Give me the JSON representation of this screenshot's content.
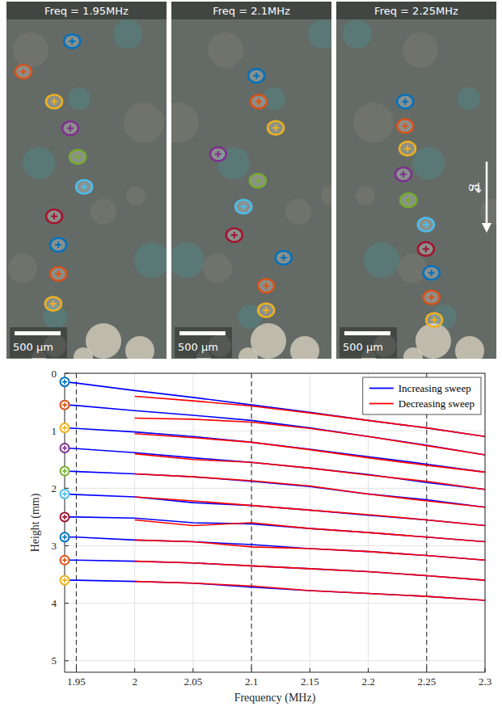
{
  "panels": [
    {
      "title": "Freq = 1.95MHz",
      "scale_bar": {
        "value": 500,
        "label": "500 µm"
      },
      "particles": [
        {
          "x": 660,
          "y": 220,
          "color": "#0072bd"
        },
        {
          "x": 130,
          "y": 550,
          "color": "#d95319"
        },
        {
          "x": 465,
          "y": 875,
          "color": "#edb120"
        },
        {
          "x": 640,
          "y": 1165,
          "color": "#7e2f8e"
        },
        {
          "x": 720,
          "y": 1475,
          "color": "#77ac30"
        },
        {
          "x": 790,
          "y": 1800,
          "color": "#4dbeee"
        },
        {
          "x": 465,
          "y": 2120,
          "color": "#a2142f"
        },
        {
          "x": 510,
          "y": 2430,
          "color": "#0072bd"
        },
        {
          "x": 510,
          "y": 2745,
          "color": "#d95319"
        },
        {
          "x": 455,
          "y": 3070,
          "color": "#edb120"
        }
      ]
    },
    {
      "title": "Freq = 2.1MHz",
      "scale_bar": {
        "value": 500,
        "label": "500 µm"
      },
      "particles": [
        {
          "x": 870,
          "y": 595,
          "color": "#0072bd"
        },
        {
          "x": 895,
          "y": 875,
          "color": "#d95319"
        },
        {
          "x": 1080,
          "y": 1160,
          "color": "#edb120"
        },
        {
          "x": 455,
          "y": 1445,
          "color": "#7e2f8e"
        },
        {
          "x": 885,
          "y": 1735,
          "color": "#77ac30"
        },
        {
          "x": 730,
          "y": 2015,
          "color": "#4dbeee"
        },
        {
          "x": 630,
          "y": 2325,
          "color": "#a2142f"
        },
        {
          "x": 1165,
          "y": 2570,
          "color": "#0072bd"
        },
        {
          "x": 975,
          "y": 2875,
          "color": "#d95319"
        },
        {
          "x": 975,
          "y": 3140,
          "color": "#edb120"
        }
      ]
    },
    {
      "title": "Freq = 2.25MHz",
      "scale_bar": {
        "value": 500,
        "label": "500 µm"
      },
      "particles": [
        {
          "x": 695,
          "y": 875,
          "color": "#0072bd"
        },
        {
          "x": 695,
          "y": 1140,
          "color": "#d95319"
        },
        {
          "x": 720,
          "y": 1385,
          "color": "#edb120"
        },
        {
          "x": 675,
          "y": 1665,
          "color": "#7e2f8e"
        },
        {
          "x": 730,
          "y": 1945,
          "color": "#77ac30"
        },
        {
          "x": 920,
          "y": 2210,
          "color": "#4dbeee"
        },
        {
          "x": 920,
          "y": 2475,
          "color": "#a2142f"
        },
        {
          "x": 980,
          "y": 2735,
          "color": "#0072bd"
        },
        {
          "x": 980,
          "y": 3000,
          "color": "#d95319"
        },
        {
          "x": 1010,
          "y": 3245,
          "color": "#edb120"
        }
      ]
    }
  ],
  "gravity_label": "g",
  "chart_data": {
    "type": "line",
    "x_label": "Frequency (MHz)",
    "y_label": "Height (mm)",
    "x": [
      1.94,
      1.95,
      2.0,
      2.05,
      2.1,
      2.15,
      2.2,
      2.25,
      2.3
    ],
    "xlim": [
      1.94,
      2.3
    ],
    "ylim": [
      5.2,
      0
    ],
    "xticks": [
      1.95,
      2,
      2.05,
      2.1,
      2.15,
      2.2,
      2.25,
      2.3
    ],
    "yticks": [
      0,
      1,
      2,
      3,
      4,
      5
    ],
    "grid": true,
    "legend": "upper right",
    "vlines": [
      1.95,
      2.1,
      2.25
    ],
    "series": [
      {
        "name": "Increasing sweep",
        "color": "#0000ff",
        "values": [
          0.15,
          0.17,
          0.3,
          0.42,
          0.55,
          0.68,
          0.82,
          0.95,
          1.1
        ]
      },
      {
        "name": "Increasing sweep",
        "color": "#0000ff",
        "values": [
          0.55,
          0.56,
          0.65,
          0.73,
          0.82,
          0.95,
          1.1,
          1.25,
          1.42
        ]
      },
      {
        "name": "Increasing sweep",
        "color": "#0000ff",
        "values": [
          0.95,
          0.96,
          1.02,
          1.1,
          1.2,
          1.32,
          1.45,
          1.58,
          1.72
        ]
      },
      {
        "name": "Increasing sweep",
        "color": "#0000ff",
        "values": [
          1.3,
          1.31,
          1.38,
          1.47,
          1.55,
          1.65,
          1.76,
          1.9,
          2.02
        ]
      },
      {
        "name": "Increasing sweep",
        "color": "#0000ff",
        "values": [
          1.7,
          1.71,
          1.75,
          1.8,
          1.88,
          1.97,
          2.1,
          2.2,
          2.33
        ]
      },
      {
        "name": "Increasing sweep",
        "color": "#0000ff",
        "values": [
          2.1,
          2.11,
          2.15,
          2.25,
          2.3,
          2.38,
          2.47,
          2.55,
          2.65
        ]
      },
      {
        "name": "Increasing sweep",
        "color": "#0000ff",
        "values": [
          2.5,
          2.5,
          2.52,
          2.6,
          2.62,
          2.7,
          2.77,
          2.85,
          2.93
        ]
      },
      {
        "name": "Increasing sweep",
        "color": "#0000ff",
        "values": [
          2.85,
          2.85,
          2.9,
          2.93,
          2.98,
          3.05,
          3.1,
          3.17,
          3.25
        ]
      },
      {
        "name": "Increasing sweep",
        "color": "#0000ff",
        "values": [
          3.25,
          3.25,
          3.27,
          3.3,
          3.35,
          3.4,
          3.45,
          3.52,
          3.6
        ]
      },
      {
        "name": "Increasing sweep",
        "color": "#0000ff",
        "values": [
          3.6,
          3.6,
          3.62,
          3.65,
          3.72,
          3.78,
          3.83,
          3.88,
          3.95
        ]
      },
      {
        "name": "Decreasing sweep",
        "color": "#ff0000",
        "values": [
          null,
          null,
          0.4,
          0.48,
          0.57,
          0.69,
          0.82,
          0.95,
          1.1
        ]
      },
      {
        "name": "Decreasing sweep",
        "color": "#ff0000",
        "values": [
          null,
          null,
          0.78,
          0.8,
          0.85,
          0.96,
          1.1,
          1.26,
          1.42
        ]
      },
      {
        "name": "Decreasing sweep",
        "color": "#ff0000",
        "values": [
          null,
          null,
          1.05,
          1.12,
          1.2,
          1.33,
          1.47,
          1.6,
          1.72
        ]
      },
      {
        "name": "Decreasing sweep",
        "color": "#ff0000",
        "values": [
          null,
          null,
          1.4,
          1.5,
          1.55,
          1.65,
          1.77,
          1.88,
          2.02
        ]
      },
      {
        "name": "Decreasing sweep",
        "color": "#ff0000",
        "values": [
          null,
          null,
          1.75,
          1.8,
          1.87,
          1.96,
          2.1,
          2.22,
          2.33
        ]
      },
      {
        "name": "Decreasing sweep",
        "color": "#ff0000",
        "values": [
          null,
          null,
          2.15,
          2.22,
          2.3,
          2.38,
          2.46,
          2.55,
          2.65
        ]
      },
      {
        "name": "Decreasing sweep",
        "color": "#ff0000",
        "values": [
          null,
          null,
          2.55,
          2.65,
          2.6,
          2.7,
          2.77,
          2.85,
          2.93
        ]
      },
      {
        "name": "Decreasing sweep",
        "color": "#ff0000",
        "values": [
          null,
          null,
          2.9,
          2.93,
          3.02,
          3.05,
          3.1,
          3.17,
          3.25
        ]
      },
      {
        "name": "Decreasing sweep",
        "color": "#ff0000",
        "values": [
          null,
          null,
          3.27,
          3.3,
          3.35,
          3.4,
          3.45,
          3.52,
          3.6
        ]
      },
      {
        "name": "Decreasing sweep",
        "color": "#ff0000",
        "values": [
          null,
          null,
          3.62,
          3.65,
          3.7,
          3.78,
          3.83,
          3.88,
          3.95
        ]
      },
      {
        "type": "scatter",
        "marker": "circle",
        "x": [
          1.94,
          1.94,
          1.94,
          1.94,
          1.94,
          1.94,
          1.94,
          1.94,
          1.94,
          1.94
        ],
        "values": [
          0.15,
          0.55,
          0.95,
          1.3,
          1.7,
          2.1,
          2.5,
          2.85,
          3.25,
          3.6
        ],
        "colors": [
          "#0072bd",
          "#d95319",
          "#edb120",
          "#7e2f8e",
          "#77ac30",
          "#4dbeee",
          "#a2142f",
          "#0072bd",
          "#d95319",
          "#edb120"
        ]
      }
    ]
  }
}
